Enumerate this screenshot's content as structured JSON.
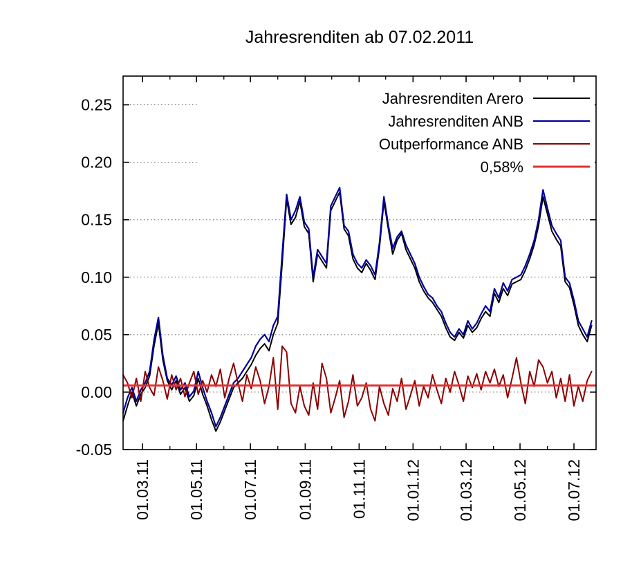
{
  "chart_data": {
    "type": "line",
    "title": "Jahresrenditen ab 07.02.2011",
    "grid": "horizontal-dotted",
    "legend_position": "top-right-inside",
    "background_color": "#ffffff",
    "xlim": [
      0,
      535
    ],
    "ylim": [
      -0.05,
      0.275
    ],
    "x_unit": "days since 07.02.2011",
    "x_ticks": [
      {
        "day": 22,
        "label": "01.03.11"
      },
      {
        "day": 83,
        "label": "01.05.11"
      },
      {
        "day": 144,
        "label": "01.07.11"
      },
      {
        "day": 206,
        "label": "01.09.11"
      },
      {
        "day": 267,
        "label": "01.11.11"
      },
      {
        "day": 328,
        "label": "01.01.12"
      },
      {
        "day": 388,
        "label": "01.03.12"
      },
      {
        "day": 449,
        "label": "01.05.12"
      },
      {
        "day": 510,
        "label": "01.07.12"
      }
    ],
    "x_minor_ticks": [
      53,
      114,
      175,
      236,
      297,
      359,
      419,
      480
    ],
    "y_ticks": [
      {
        "v": -0.05,
        "label": "-0.05"
      },
      {
        "v": 0.0,
        "label": "0.00"
      },
      {
        "v": 0.05,
        "label": "0.05"
      },
      {
        "v": 0.1,
        "label": "0.10"
      },
      {
        "v": 0.15,
        "label": "0.15"
      },
      {
        "v": 0.2,
        "label": "0.20"
      },
      {
        "v": 0.25,
        "label": "0.25"
      }
    ],
    "x_days": {
      "start": 0,
      "step": 5,
      "count": 107
    },
    "series": [
      {
        "id": "arero",
        "name": "Jahresrenditen Arero",
        "color": "#000000",
        "width": 2,
        "values": [
          -0.025,
          -0.012,
          0.0,
          -0.012,
          -0.002,
          0.004,
          0.014,
          0.04,
          0.06,
          0.028,
          0.01,
          0.002,
          0.01,
          -0.002,
          0.004,
          -0.008,
          -0.003,
          0.012,
          -0.002,
          -0.012,
          -0.024,
          -0.034,
          -0.026,
          -0.016,
          -0.006,
          0.004,
          0.008,
          0.012,
          0.018,
          0.024,
          0.032,
          0.038,
          0.042,
          0.036,
          0.05,
          0.06,
          0.112,
          0.168,
          0.146,
          0.152,
          0.166,
          0.144,
          0.138,
          0.096,
          0.12,
          0.114,
          0.108,
          0.158,
          0.166,
          0.174,
          0.142,
          0.136,
          0.116,
          0.108,
          0.104,
          0.112,
          0.106,
          0.098,
          0.126,
          0.166,
          0.142,
          0.12,
          0.132,
          0.138,
          0.124,
          0.116,
          0.108,
          0.096,
          0.088,
          0.082,
          0.078,
          0.072,
          0.066,
          0.056,
          0.048,
          0.045,
          0.052,
          0.047,
          0.058,
          0.052,
          0.056,
          0.064,
          0.07,
          0.066,
          0.086,
          0.078,
          0.09,
          0.084,
          0.094,
          0.096,
          0.098,
          0.106,
          0.116,
          0.128,
          0.145,
          0.17,
          0.155,
          0.14,
          0.133,
          0.127,
          0.096,
          0.091,
          0.076,
          0.058,
          0.05,
          0.044,
          0.058
        ]
      },
      {
        "id": "anb",
        "name": "Jahresrenditen ANB",
        "color": "#000099",
        "width": 2.2,
        "values": [
          -0.018,
          -0.005,
          0.004,
          -0.008,
          0.002,
          0.008,
          0.018,
          0.045,
          0.065,
          0.032,
          0.012,
          0.006,
          0.014,
          0.002,
          0.008,
          -0.004,
          0.001,
          0.018,
          0.004,
          -0.008,
          -0.018,
          -0.03,
          -0.022,
          -0.012,
          -0.002,
          0.008,
          0.012,
          0.018,
          0.024,
          0.03,
          0.04,
          0.046,
          0.05,
          0.044,
          0.058,
          0.066,
          0.12,
          0.172,
          0.15,
          0.158,
          0.17,
          0.148,
          0.142,
          0.1,
          0.124,
          0.118,
          0.112,
          0.162,
          0.17,
          0.178,
          0.145,
          0.14,
          0.12,
          0.112,
          0.108,
          0.115,
          0.11,
          0.102,
          0.13,
          0.17,
          0.145,
          0.125,
          0.135,
          0.14,
          0.128,
          0.12,
          0.112,
          0.1,
          0.092,
          0.085,
          0.082,
          0.075,
          0.07,
          0.06,
          0.052,
          0.048,
          0.055,
          0.05,
          0.062,
          0.055,
          0.06,
          0.068,
          0.075,
          0.07,
          0.09,
          0.082,
          0.095,
          0.088,
          0.098,
          0.1,
          0.102,
          0.11,
          0.12,
          0.132,
          0.15,
          0.176,
          0.16,
          0.145,
          0.138,
          0.132,
          0.1,
          0.095,
          0.08,
          0.062,
          0.055,
          0.048,
          0.062
        ]
      },
      {
        "id": "outperformance",
        "name": "Outperformance ANB",
        "color": "#8b0000",
        "width": 2,
        "values": [
          0.015,
          0.008,
          -0.005,
          0.012,
          -0.008,
          0.018,
          0.004,
          -0.003,
          0.022,
          0.01,
          -0.006,
          0.015,
          0.002,
          0.012,
          -0.004,
          0.008,
          0.018,
          -0.002,
          0.01,
          0.0,
          0.015,
          0.005,
          0.02,
          -0.005,
          0.012,
          0.025,
          0.008,
          -0.008,
          0.015,
          0.003,
          0.022,
          0.01,
          -0.01,
          0.005,
          0.03,
          -0.015,
          0.04,
          0.035,
          -0.01,
          -0.018,
          0.005,
          -0.012,
          -0.02,
          0.008,
          -0.015,
          0.025,
          0.012,
          -0.018,
          -0.005,
          0.01,
          -0.022,
          -0.008,
          0.015,
          -0.012,
          -0.005,
          0.008,
          -0.015,
          -0.025,
          0.005,
          -0.01,
          -0.02,
          0.003,
          -0.008,
          0.012,
          -0.015,
          -0.003,
          0.01,
          -0.012,
          0.005,
          -0.005,
          0.015,
          0.002,
          -0.01,
          0.012,
          0.0,
          0.018,
          0.006,
          -0.008,
          0.014,
          0.004,
          0.016,
          0.002,
          0.018,
          0.008,
          0.02,
          0.005,
          0.015,
          -0.005,
          0.012,
          0.03,
          0.008,
          -0.01,
          0.018,
          0.005,
          0.028,
          0.022,
          0.008,
          0.018,
          -0.005,
          0.012,
          -0.008,
          0.015,
          -0.012,
          0.005,
          -0.008,
          0.01,
          0.018
        ]
      }
    ],
    "reference_line": {
      "id": "ref-058",
      "name": "0,58%",
      "color": "#e03232",
      "width": 3,
      "value": 0.0058
    }
  }
}
